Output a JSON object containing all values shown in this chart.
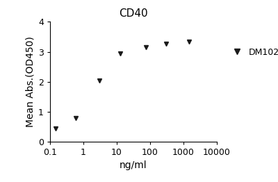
{
  "title": "CD40",
  "xlabel": "ng/ml",
  "ylabel": "Mean Abs.(OD450)",
  "x_data": [
    0.15,
    0.6,
    3.0,
    12.5,
    75,
    300,
    1500
  ],
  "y_data": [
    0.45,
    0.8,
    2.05,
    2.95,
    3.15,
    3.27,
    3.35
  ],
  "xlim": [
    0.1,
    10000
  ],
  "ylim": [
    0,
    4
  ],
  "yticks": [
    0,
    1,
    2,
    3,
    4
  ],
  "xticks": [
    0.1,
    1,
    10,
    100,
    1000,
    10000
  ],
  "xtick_labels": [
    "0.1",
    "1",
    "10",
    "100",
    "1000",
    "10000"
  ],
  "line_color": "#1a1a1a",
  "marker": "v",
  "marker_size": 5,
  "legend_label": "DM102",
  "title_fontsize": 11,
  "label_fontsize": 10,
  "tick_fontsize": 9,
  "legend_fontsize": 9
}
